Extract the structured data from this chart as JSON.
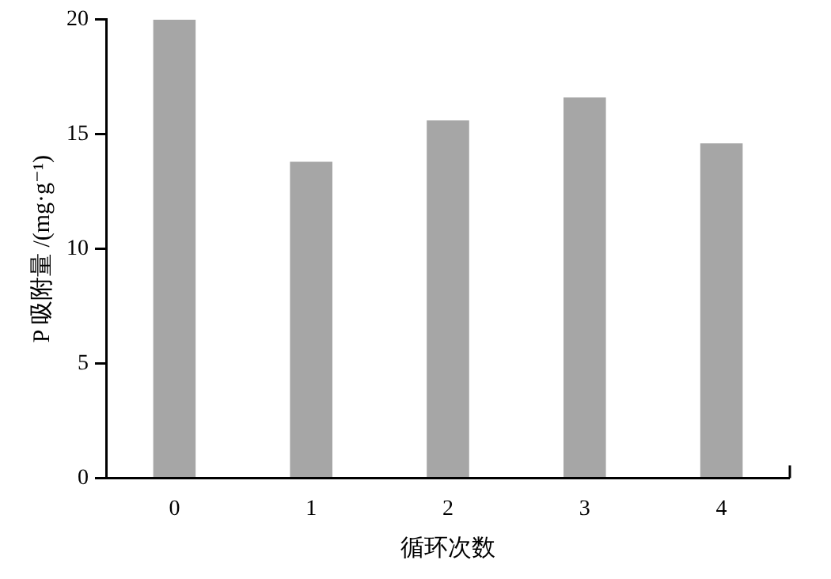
{
  "chart_data": {
    "type": "bar",
    "xlabel": "循环次数",
    "ylabel": "P 吸附量 /(mg·g⁻¹)",
    "categories": [
      "0",
      "1",
      "2",
      "3",
      "4"
    ],
    "values": [
      20,
      13.8,
      15.6,
      16.6,
      14.6
    ],
    "color": "#a6a6a6",
    "ylim": [
      0,
      20
    ],
    "yticks": [
      0,
      5,
      10,
      15,
      20
    ],
    "grid": false,
    "legend": false
  }
}
